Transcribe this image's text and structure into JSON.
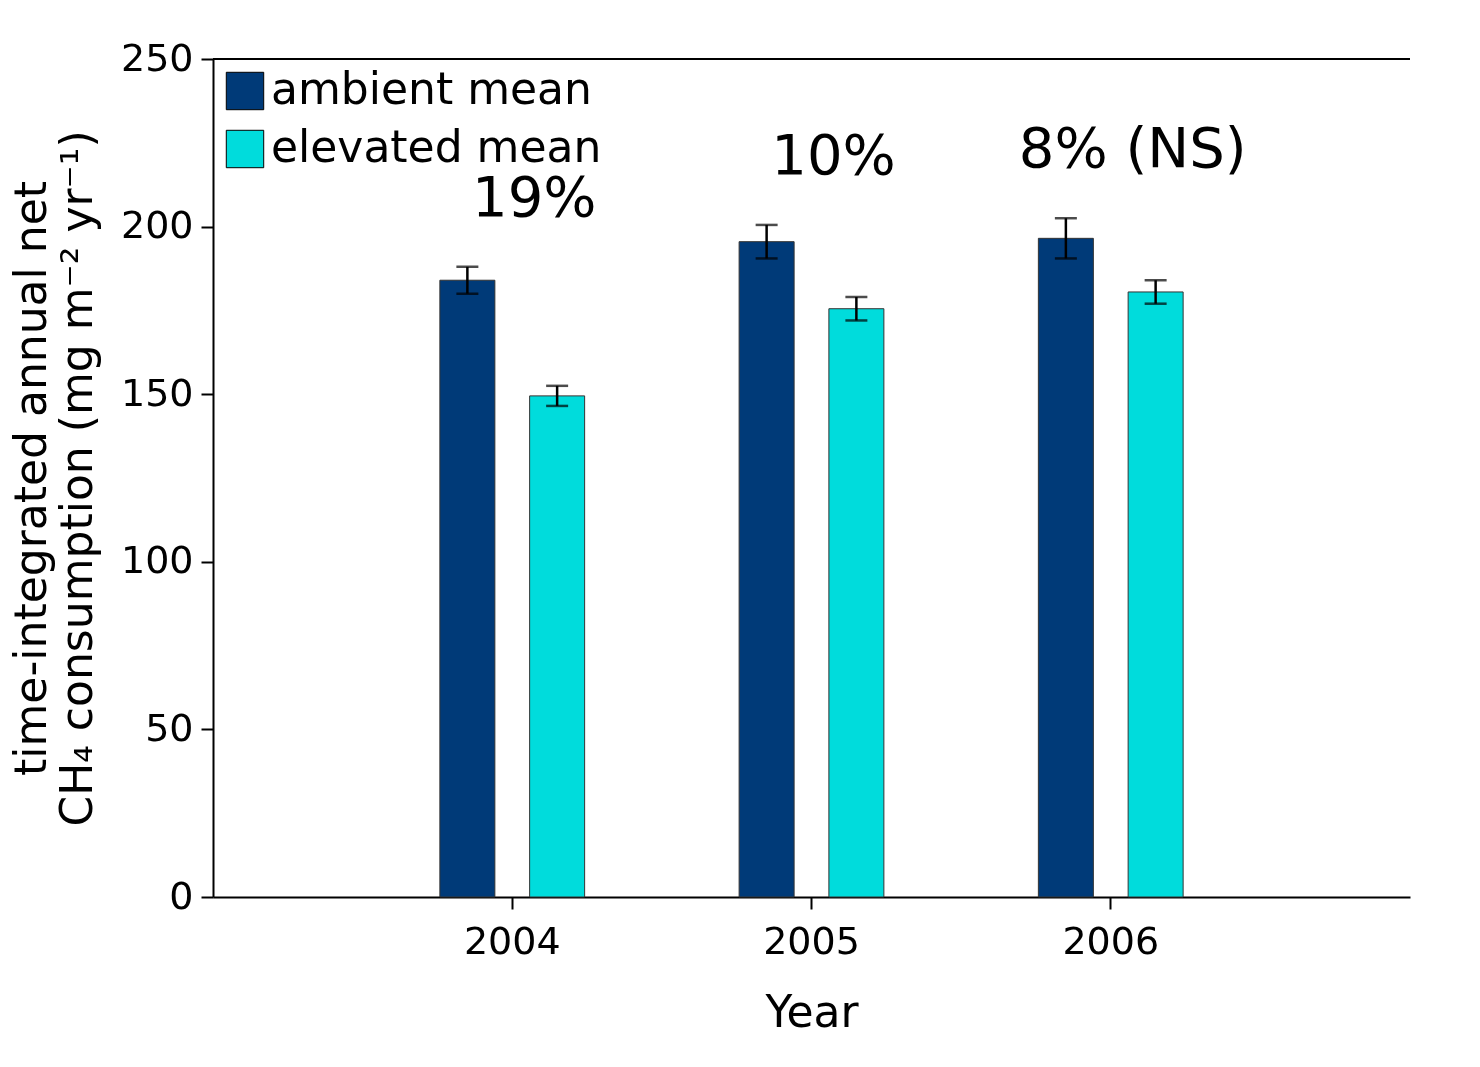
{
  "chart_data": {
    "type": "bar",
    "xlabel": "Year",
    "ylabel": "time-integrated annual net\nCH₄ consumption (mg m⁻² yr⁻¹)",
    "categories": [
      "2004",
      "2005",
      "2006"
    ],
    "series": [
      {
        "name": "ambient mean",
        "color": "#003a78",
        "values": [
          184,
          195.5,
          196.5
        ],
        "errors": [
          4,
          5,
          6
        ]
      },
      {
        "name": "elevated mean",
        "color": "#00dcdc",
        "values": [
          149.5,
          175.5,
          180.5
        ],
        "errors": [
          3,
          3.5,
          3.5
        ]
      }
    ],
    "ylim": [
      0,
      250
    ],
    "yticks": [
      0,
      50,
      100,
      150,
      200,
      250
    ],
    "annotations": [
      "19%",
      "10%",
      "8% (NS)"
    ],
    "grid": false,
    "legend": "top left"
  }
}
